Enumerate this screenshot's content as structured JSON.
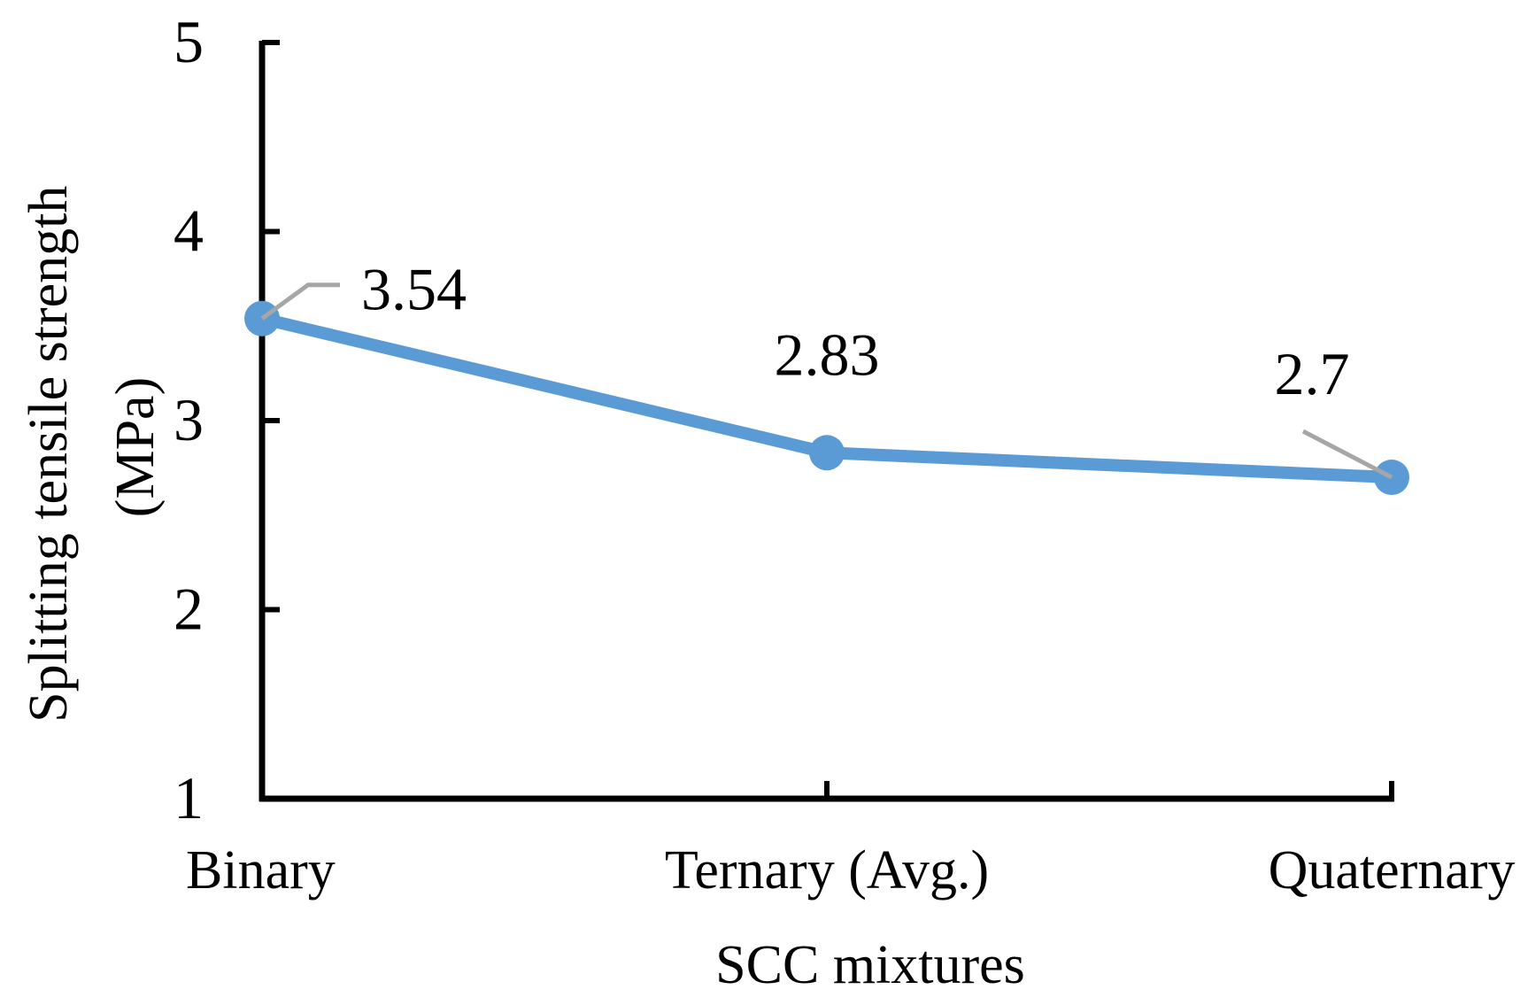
{
  "chart_data": {
    "type": "line",
    "title": "",
    "xlabel": "SCC mixtures",
    "ylabel_lines": [
      "Splitting tensile strength",
      "(MPa)"
    ],
    "categories": [
      "Binary",
      "Ternary (Avg.)",
      "Quaternary"
    ],
    "series": [
      {
        "values": [
          3.54,
          2.83,
          2.7
        ],
        "data_labels": [
          "3.54",
          "2.83",
          "2.7"
        ]
      }
    ],
    "ylim": [
      1,
      5
    ],
    "yticks": [
      1,
      2,
      3,
      4,
      5
    ],
    "grid": false,
    "legend": "none",
    "colors": {
      "series": "#5b9bd5",
      "axis": "#000000",
      "leader_line": "#a6a6a6"
    }
  }
}
